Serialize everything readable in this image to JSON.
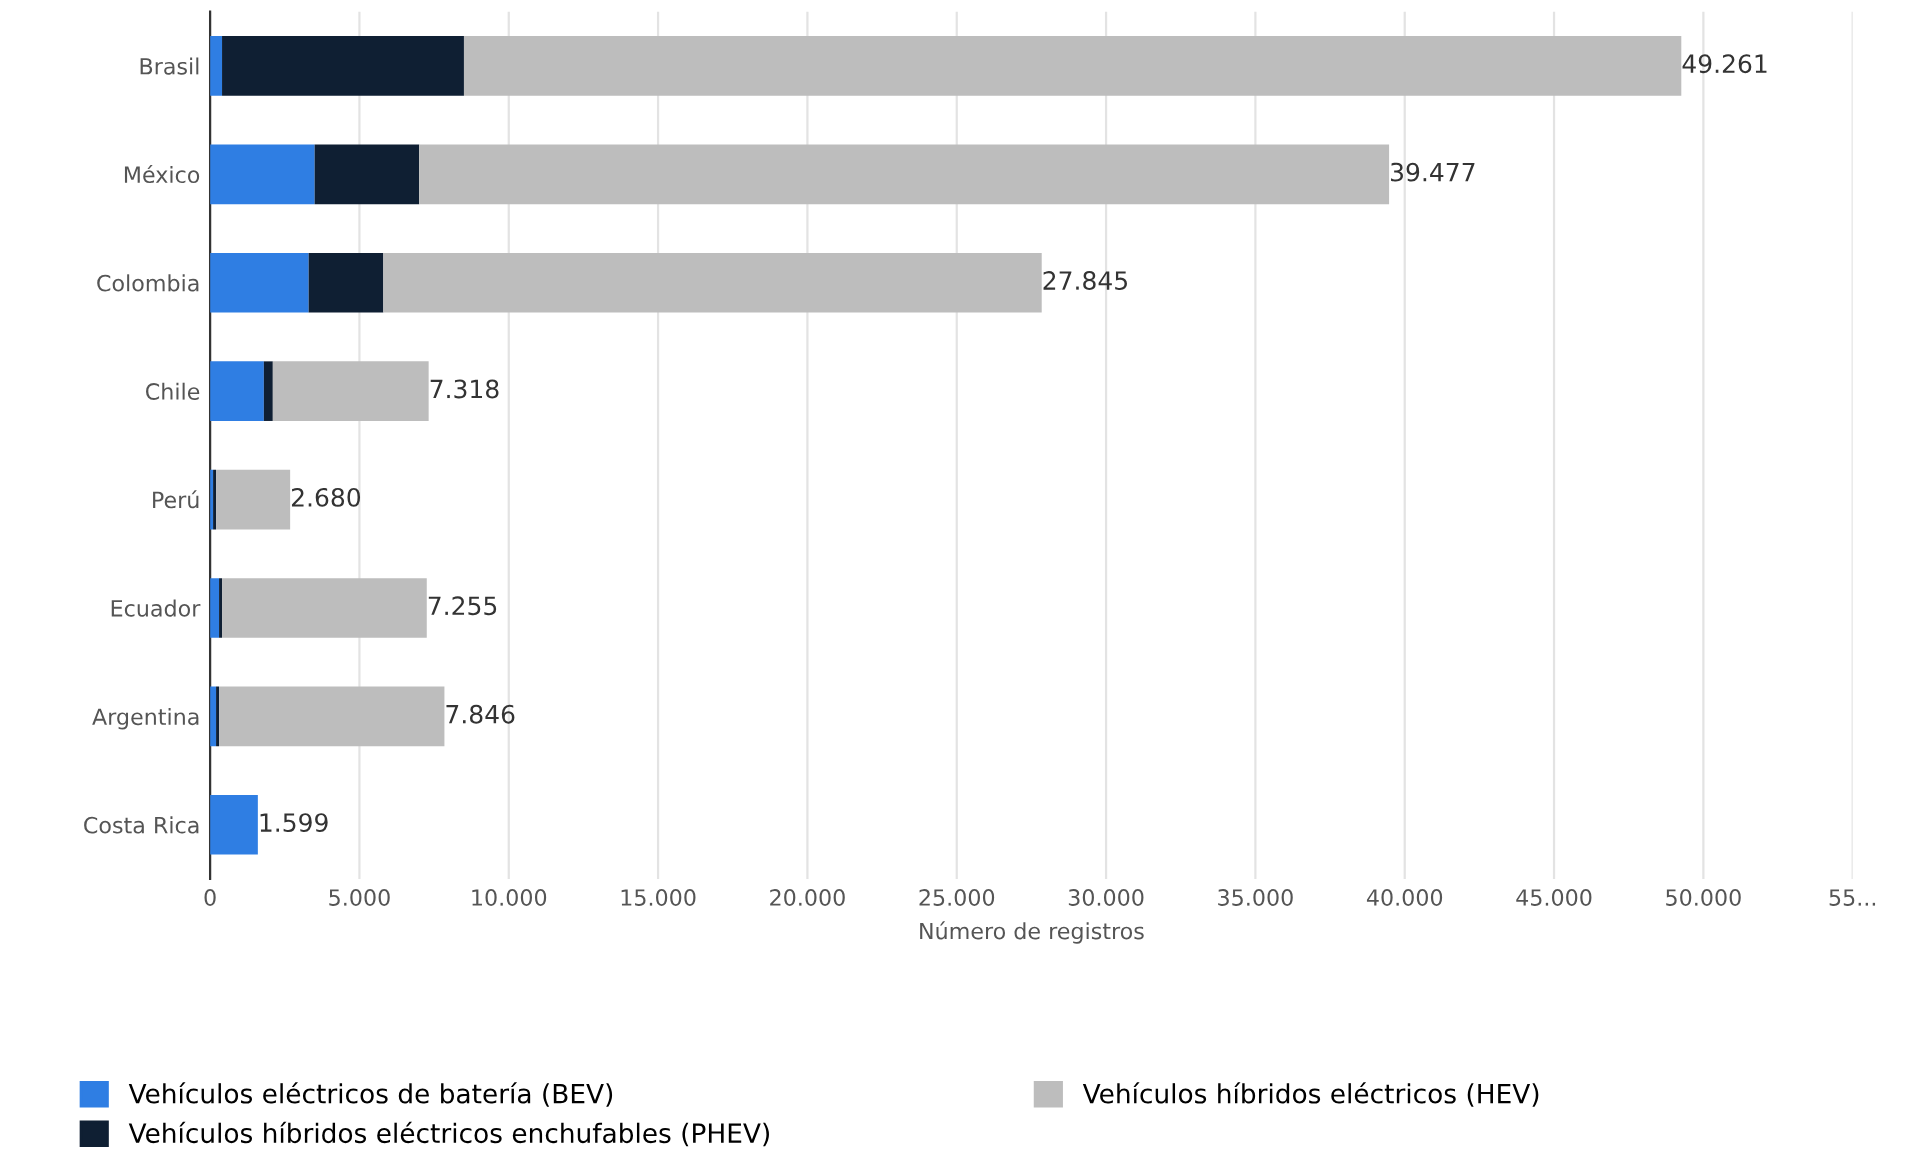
{
  "chart_data": {
    "type": "bar",
    "orientation": "horizontal",
    "stacked": true,
    "xlabel": "Número de registros",
    "categories": [
      "Brasil",
      "México",
      "Colombia",
      "Chile",
      "Perú",
      "Ecuador",
      "Argentina",
      "Costa Rica"
    ],
    "series": [
      {
        "name": "Vehículos eléctricos de batería (BEV)",
        "color": "#2f7ee3",
        "values": [
          400,
          3500,
          3300,
          1800,
          100,
          300,
          200,
          1599
        ]
      },
      {
        "name": "Vehículos híbridos eléctricos enchufables (PHEV)",
        "color": "#0f1f33",
        "values": [
          8100,
          3500,
          2500,
          300,
          100,
          100,
          100,
          0
        ]
      },
      {
        "name": "Vehículos híbridos eléctricos (HEV)",
        "color": "#bdbdbd",
        "values": [
          40761,
          32477,
          22045,
          5218,
          2480,
          6855,
          7546,
          0
        ]
      }
    ],
    "totals": [
      "49.261",
      "39.477",
      "27.845",
      "7.318",
      "2.680",
      "7.255",
      "7.846",
      "1.599"
    ],
    "xlim": [
      0,
      55000
    ],
    "xticks": [
      0,
      {
        "value": 5000,
        "label": "5.000"
      },
      {
        "value": 10000,
        "label": "10.000"
      },
      {
        "value": 15000,
        "label": "15.000"
      },
      {
        "value": 20000,
        "label": "20.000"
      },
      {
        "value": 25000,
        "label": "25.000"
      },
      {
        "value": 30000,
        "label": "30.000"
      },
      {
        "value": 35000,
        "label": "35.000"
      },
      {
        "value": 40000,
        "label": "40.000"
      },
      {
        "value": 45000,
        "label": "45.000"
      },
      {
        "value": 50000,
        "label": "50.000"
      },
      {
        "value": 55000,
        "label": "55..."
      }
    ],
    "grid": "x",
    "legend": "bottom"
  }
}
